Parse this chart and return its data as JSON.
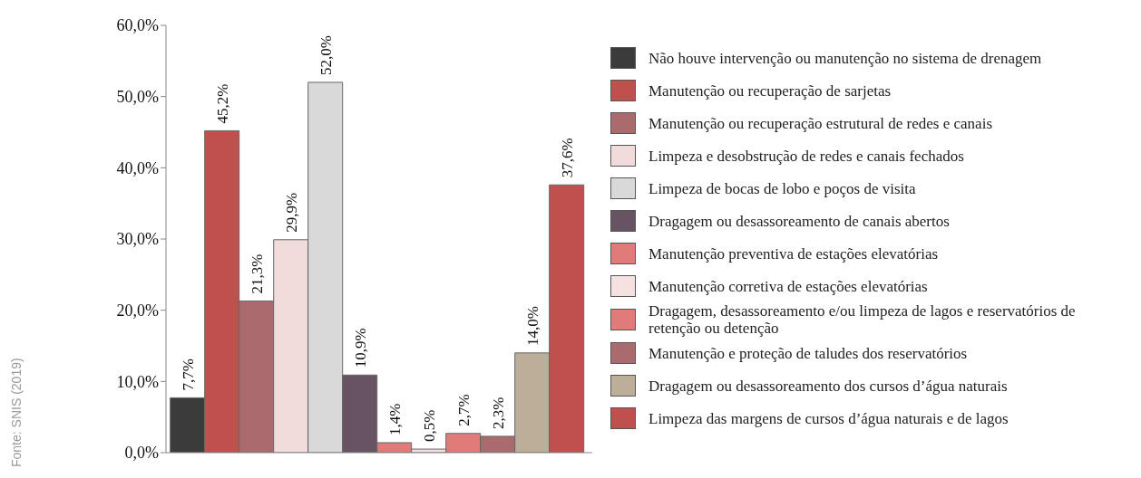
{
  "chart_data": {
    "type": "bar",
    "categories": [
      null
    ],
    "series": [
      {
        "name": "Não houve intervenção ou manutenção no sistema de drenagem",
        "color": "#3b3b3b",
        "values": [
          7.7
        ],
        "value_labels": [
          "7,7%"
        ]
      },
      {
        "name": "Manutenção ou recuperação de sarjetas",
        "color": "#c0504d",
        "values": [
          45.2
        ],
        "value_labels": [
          "45,2%"
        ]
      },
      {
        "name": "Manutenção ou recuperação estrutural de redes e canais",
        "color": "#a96b6e",
        "values": [
          21.3
        ],
        "value_labels": [
          "21,3%"
        ]
      },
      {
        "name": "Limpeza e desobstrução de redes e canais fechados",
        "color": "#f2dcdb",
        "values": [
          29.9
        ],
        "value_labels": [
          "29,9%"
        ]
      },
      {
        "name": "Limpeza de bocas de lobo e poços de visita",
        "color": "#d9d9d9",
        "values": [
          52.0
        ],
        "value_labels": [
          "52,0%"
        ]
      },
      {
        "name": "Dragagem ou desassoreamento de canais abertos",
        "color": "#675361",
        "values": [
          10.9
        ],
        "value_labels": [
          "10,9%"
        ]
      },
      {
        "name": "Manutenção preventiva de estações elevatórias",
        "color": "#e07b7a",
        "values": [
          1.4
        ],
        "value_labels": [
          "1,4%"
        ]
      },
      {
        "name": "Manutenção corretiva de estações elevatórias",
        "color": "#f5e1df",
        "values": [
          0.5
        ],
        "value_labels": [
          "0,5%"
        ]
      },
      {
        "name": "Dragagem, desassoreamento e/ou limpeza de lagos e reservatórios de retenção ou detenção",
        "color": "#e07b7a",
        "values": [
          2.7
        ],
        "value_labels": [
          "2,7%"
        ]
      },
      {
        "name": "Manutenção e proteção de taludes dos reservatórios",
        "color": "#a96b6e",
        "values": [
          2.3
        ],
        "value_labels": [
          "2,3%"
        ]
      },
      {
        "name": "Dragagem ou desassoreamento dos cursos d’água naturais",
        "color": "#bcae98",
        "values": [
          14.0
        ],
        "value_labels": [
          "14,0%"
        ]
      },
      {
        "name": "Limpeza das margens de cursos d’água naturais e de lagos",
        "color": "#c0504d",
        "values": [
          37.6
        ],
        "value_labels": [
          "37,6%"
        ]
      }
    ],
    "ylim": [
      0,
      60
    ],
    "yticks": [
      {
        "value": 0,
        "label": "0,0%"
      },
      {
        "value": 10,
        "label": "10,0%"
      },
      {
        "value": 20,
        "label": "20,0%"
      },
      {
        "value": 30,
        "label": "30,0%"
      },
      {
        "value": 40,
        "label": "40,0%"
      },
      {
        "value": 50,
        "label": "50,0%"
      },
      {
        "value": 60,
        "label": "60,0%"
      }
    ],
    "grid": false,
    "legend": "right",
    "annotations": [
      "Fonte: SNIS (2019)"
    ]
  }
}
